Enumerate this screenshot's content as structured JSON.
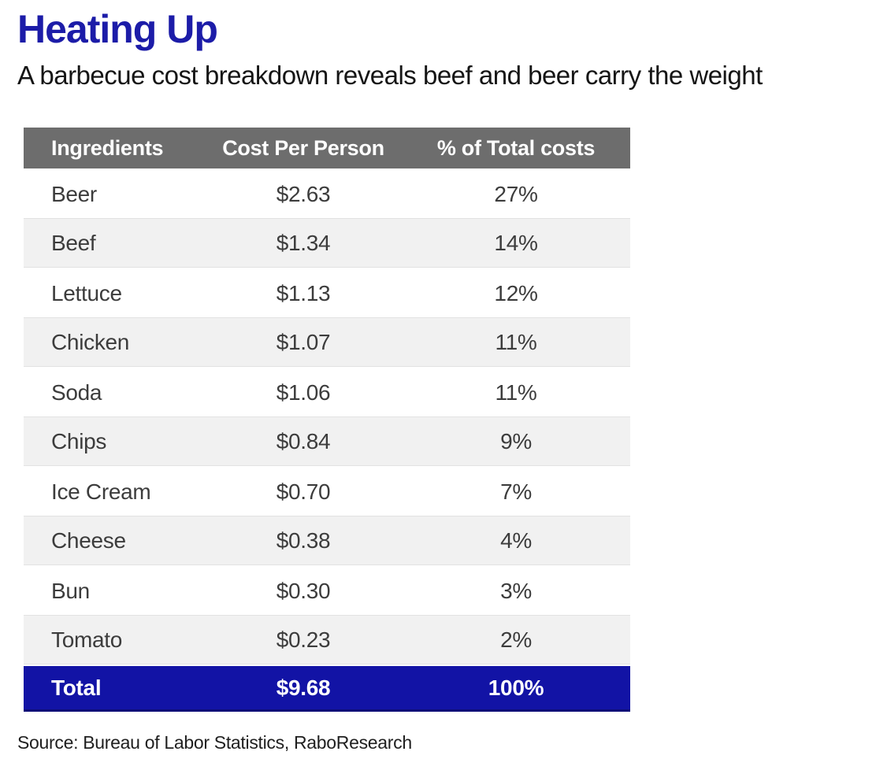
{
  "title": "Heating Up",
  "subtitle": "A barbecue cost breakdown reveals beef and beer carry the weight",
  "source": "Source: Bureau of Labor Statistics, RaboResearch",
  "colors": {
    "headline_blue": "#1c1ca8",
    "header_gray": "#6d6d6d",
    "total_row_blue": "#1213a5",
    "alt_row_gray": "#f1f1f1",
    "body_text": "#3c3c3c"
  },
  "chart_data": {
    "type": "table",
    "title": "Heating Up",
    "subtitle": "A barbecue cost breakdown reveals beef and beer carry the weight",
    "columns": [
      "Ingredients",
      "Cost Per Person",
      "% of Total costs"
    ],
    "rows": [
      {
        "ingredient": "Beer",
        "cost": "$2.63",
        "pct": "27%",
        "cost_usd": 2.63,
        "pct_value": 27
      },
      {
        "ingredient": "Beef",
        "cost": "$1.34",
        "pct": "14%",
        "cost_usd": 1.34,
        "pct_value": 14
      },
      {
        "ingredient": "Lettuce",
        "cost": "$1.13",
        "pct": "12%",
        "cost_usd": 1.13,
        "pct_value": 12
      },
      {
        "ingredient": "Chicken",
        "cost": "$1.07",
        "pct": "11%",
        "cost_usd": 1.07,
        "pct_value": 11
      },
      {
        "ingredient": "Soda",
        "cost": "$1.06",
        "pct": "11%",
        "cost_usd": 1.06,
        "pct_value": 11
      },
      {
        "ingredient": "Chips",
        "cost": "$0.84",
        "pct": "9%",
        "cost_usd": 0.84,
        "pct_value": 9
      },
      {
        "ingredient": "Ice Cream",
        "cost": "$0.70",
        "pct": "7%",
        "cost_usd": 0.7,
        "pct_value": 7
      },
      {
        "ingredient": "Cheese",
        "cost": "$0.38",
        "pct": "4%",
        "cost_usd": 0.38,
        "pct_value": 4
      },
      {
        "ingredient": "Bun",
        "cost": "$0.30",
        "pct": "3%",
        "cost_usd": 0.3,
        "pct_value": 3
      },
      {
        "ingredient": "Tomato",
        "cost": "$0.23",
        "pct": "2%",
        "cost_usd": 0.23,
        "pct_value": 2
      }
    ],
    "total": {
      "ingredient": "Total",
      "cost": "$9.68",
      "pct": "100%",
      "cost_usd": 9.68,
      "pct_value": 100
    },
    "source": "Source: Bureau of Labor Statistics, RaboResearch",
    "legend_position": "none",
    "grid": false
  }
}
